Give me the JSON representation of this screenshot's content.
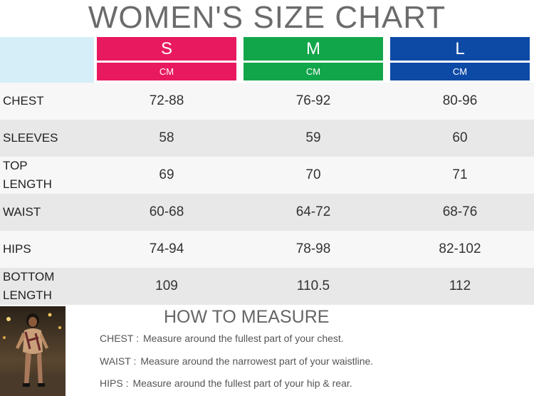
{
  "title": "WOMEN'S SIZE CHART",
  "sizes": [
    {
      "name": "S",
      "unit": "CM",
      "color": "#e8195f"
    },
    {
      "name": "M",
      "unit": "CM",
      "color": "#12a64a"
    },
    {
      "name": "L",
      "unit": "CM",
      "color": "#0d4aa6"
    }
  ],
  "rows": [
    {
      "label": "CHEST",
      "values": [
        "72-88",
        "76-92",
        "80-96"
      ]
    },
    {
      "label": "SLEEVES",
      "values": [
        "58",
        "59",
        "60"
      ]
    },
    {
      "label": "TOP LENGTH",
      "values": [
        "69",
        "70",
        "71"
      ]
    },
    {
      "label": "WAIST",
      "values": [
        "60-68",
        "64-72",
        "68-76"
      ]
    },
    {
      "label": "HIPS",
      "values": [
        "74-94",
        "78-98",
        "82-102"
      ]
    },
    {
      "label": "BOTTOM LENGTH",
      "values": [
        "109",
        "110.5",
        "112"
      ]
    }
  ],
  "how_to": {
    "title": "HOW TO MEASURE",
    "items": [
      {
        "key": "CHEST :",
        "text": "Measure around the fullest part of your chest."
      },
      {
        "key": "WAIST :",
        "text": "Measure around the narrowest part of your waistline."
      },
      {
        "key": "HIPS :",
        "text": "Measure around the fullest part of your hip & rear."
      }
    ]
  }
}
